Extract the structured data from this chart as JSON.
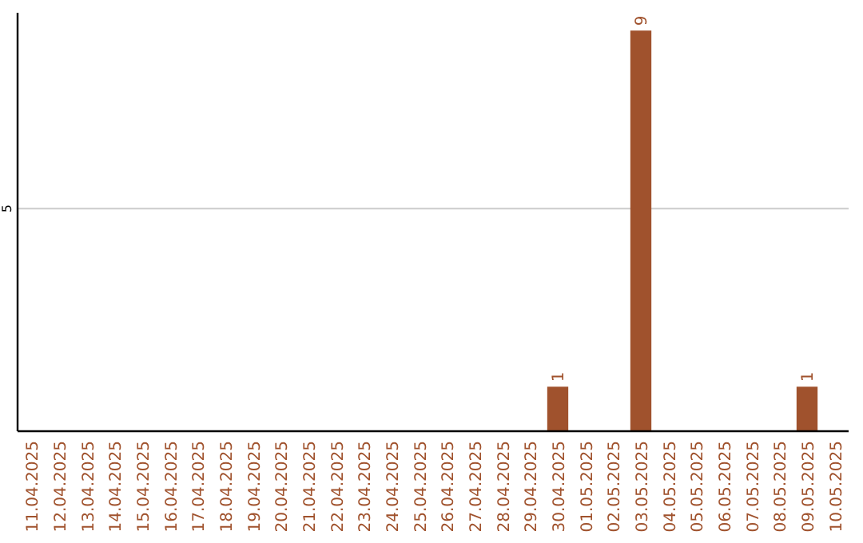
{
  "chart_data": {
    "type": "bar",
    "categories": [
      "11.04.2025",
      "12.04.2025",
      "13.04.2025",
      "14.04.2025",
      "15.04.2025",
      "16.04.2025",
      "17.04.2025",
      "18.04.2025",
      "19.04.2025",
      "20.04.2025",
      "21.04.2025",
      "22.04.2025",
      "23.04.2025",
      "24.04.2025",
      "25.04.2025",
      "26.04.2025",
      "27.04.2025",
      "28.04.2025",
      "29.04.2025",
      "30.04.2025",
      "01.05.2025",
      "02.05.2025",
      "03.05.2025",
      "04.05.2025",
      "05.05.2025",
      "06.05.2025",
      "07.05.2025",
      "08.05.2025",
      "09.05.2025",
      "10.05.2025"
    ],
    "values": [
      null,
      null,
      null,
      null,
      null,
      null,
      null,
      null,
      null,
      null,
      null,
      null,
      null,
      null,
      null,
      null,
      null,
      null,
      null,
      1,
      null,
      null,
      9,
      null,
      null,
      null,
      null,
      null,
      1,
      null
    ],
    "ylim": [
      0,
      9.4
    ],
    "value_labels": [
      null,
      null,
      null,
      null,
      null,
      null,
      null,
      null,
      null,
      null,
      null,
      null,
      null,
      null,
      null,
      null,
      null,
      null,
      null,
      "1",
      null,
      null,
      "9",
      null,
      null,
      null,
      null,
      null,
      "1",
      null
    ],
    "color": "#a0522d",
    "ref_lines": [
      {
        "axis": "y",
        "value": 5,
        "label": "5",
        "color": "#cccccc"
      }
    ]
  }
}
